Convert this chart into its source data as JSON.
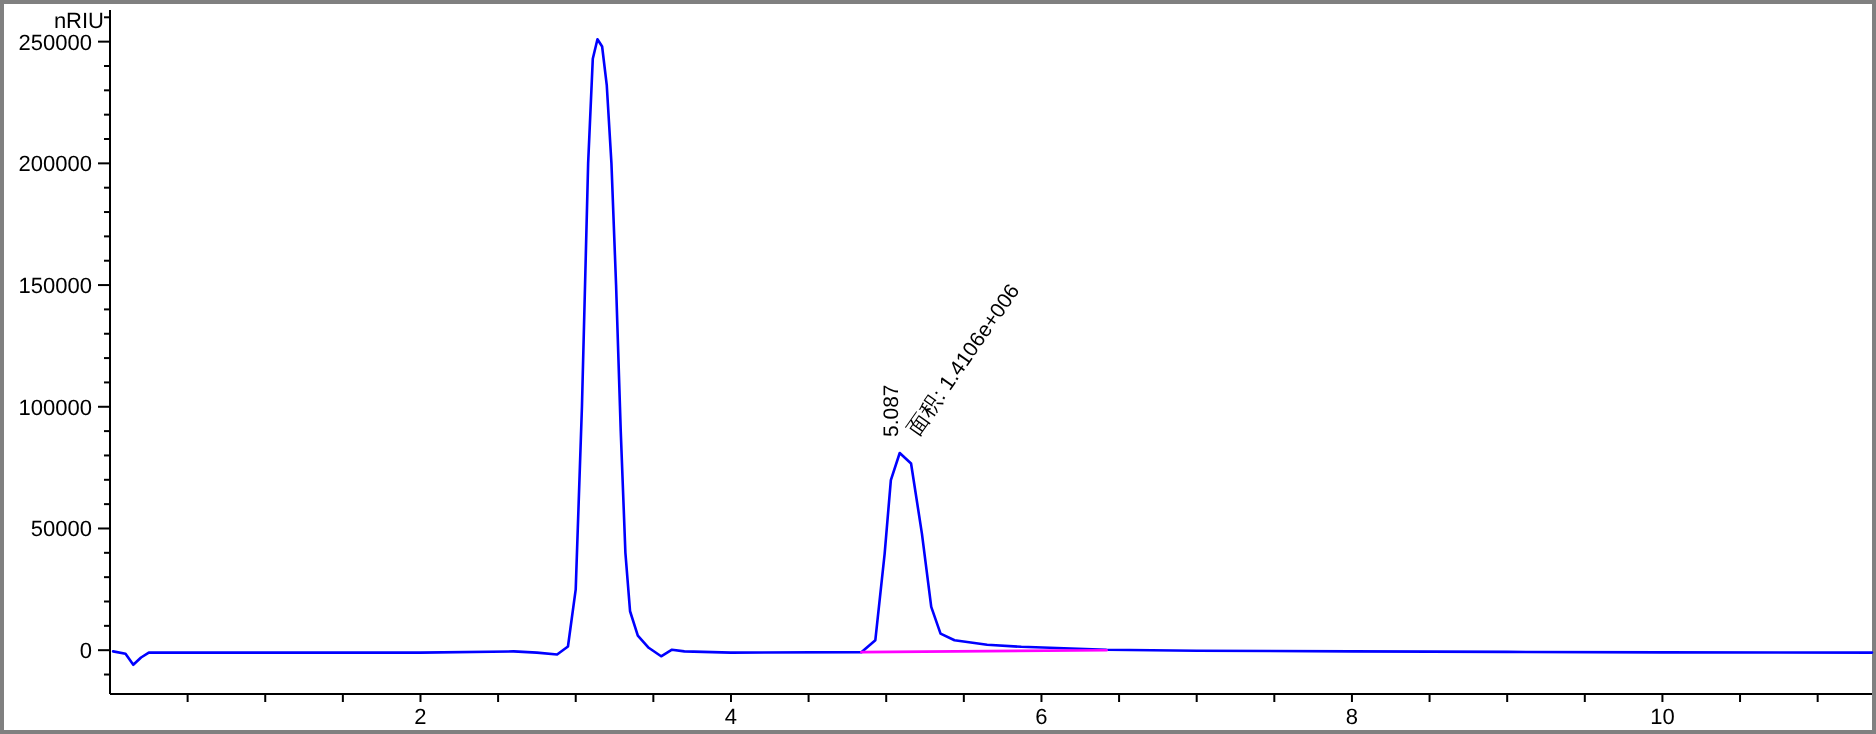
{
  "chart_data": {
    "type": "line",
    "ylabel": "nRIU",
    "xlim": [
      0,
      11.35
    ],
    "ylim": [
      -18000,
      263000
    ],
    "xticks": [
      {
        "value": 0.5,
        "label": null
      },
      {
        "value": 1,
        "label": null
      },
      {
        "value": 1.5,
        "label": null
      },
      2,
      {
        "value": 2.5,
        "label": null
      },
      {
        "value": 3,
        "label": null
      },
      {
        "value": 3.5,
        "label": null
      },
      4,
      {
        "value": 4.5,
        "label": null
      },
      {
        "value": 5,
        "label": null
      },
      {
        "value": 5.5,
        "label": null
      },
      6,
      {
        "value": 6.5,
        "label": null
      },
      {
        "value": 7,
        "label": null
      },
      {
        "value": 7.5,
        "label": null
      },
      8,
      {
        "value": 8.5,
        "label": null
      },
      {
        "value": 9,
        "label": null
      },
      {
        "value": 9.5,
        "label": null
      },
      10,
      {
        "value": 10.5,
        "label": null
      },
      {
        "value": 11,
        "label": null
      }
    ],
    "yticks": [
      {
        "value": -10000,
        "label": null
      },
      0,
      {
        "value": 10000,
        "label": null
      },
      {
        "value": 20000,
        "label": null
      },
      {
        "value": 30000,
        "label": null
      },
      {
        "value": 40000,
        "label": null
      },
      50000,
      {
        "value": 60000,
        "label": null
      },
      {
        "value": 70000,
        "label": null
      },
      {
        "value": 80000,
        "label": null
      },
      {
        "value": 90000,
        "label": null
      },
      100000,
      {
        "value": 110000,
        "label": null
      },
      {
        "value": 120000,
        "label": null
      },
      {
        "value": 130000,
        "label": null
      },
      {
        "value": 140000,
        "label": null
      },
      150000,
      {
        "value": 160000,
        "label": null
      },
      {
        "value": 170000,
        "label": null
      },
      {
        "value": 180000,
        "label": null
      },
      {
        "value": 190000,
        "label": null
      },
      200000,
      {
        "value": 210000,
        "label": null
      },
      {
        "value": 220000,
        "label": null
      },
      {
        "value": 230000,
        "label": null
      },
      {
        "value": 240000,
        "label": null
      },
      250000,
      {
        "value": 260000,
        "label": null
      }
    ],
    "series": [
      {
        "color": "#0000ff",
        "x": [
          0.02,
          0.1,
          0.15,
          0.2,
          0.25,
          1.0,
          2.0,
          2.6,
          2.75,
          2.88,
          2.95,
          3.0,
          3.04,
          3.08,
          3.11,
          3.14,
          3.17,
          3.2,
          3.23,
          3.26,
          3.29,
          3.32,
          3.35,
          3.4,
          3.47,
          3.55,
          3.62,
          3.7,
          4.0,
          4.84,
          4.93,
          4.99,
          5.03,
          5.087,
          5.16,
          5.23,
          5.29,
          5.35,
          5.44,
          5.65,
          5.87,
          6.42,
          7,
          8,
          9,
          10,
          11.35
        ],
        "values": [
          -500,
          -1500,
          -6000,
          -3000,
          -1000,
          -1000,
          -1000,
          -500,
          -1000,
          -1800,
          1500,
          25000,
          100000,
          200000,
          243000,
          251000,
          248000,
          232000,
          200000,
          150000,
          90000,
          40000,
          16000,
          6000,
          1000,
          -2500,
          200,
          -500,
          -1000,
          -800,
          4100,
          39700,
          69900,
          81000,
          76700,
          47900,
          17800,
          6800,
          4100,
          2200,
          1400,
          200,
          -200,
          -500,
          -700,
          -900,
          -1000
        ]
      },
      {
        "color": "#ff00ff",
        "x": [
          4.84,
          6.42
        ],
        "values": [
          -800,
          0
        ]
      }
    ],
    "annotations": [
      {
        "text": "5.087",
        "x": 5.087,
        "y": 81000
      },
      {
        "text": "面积: 1.4106e+006",
        "x": 5.087,
        "y": 81000
      }
    ]
  }
}
